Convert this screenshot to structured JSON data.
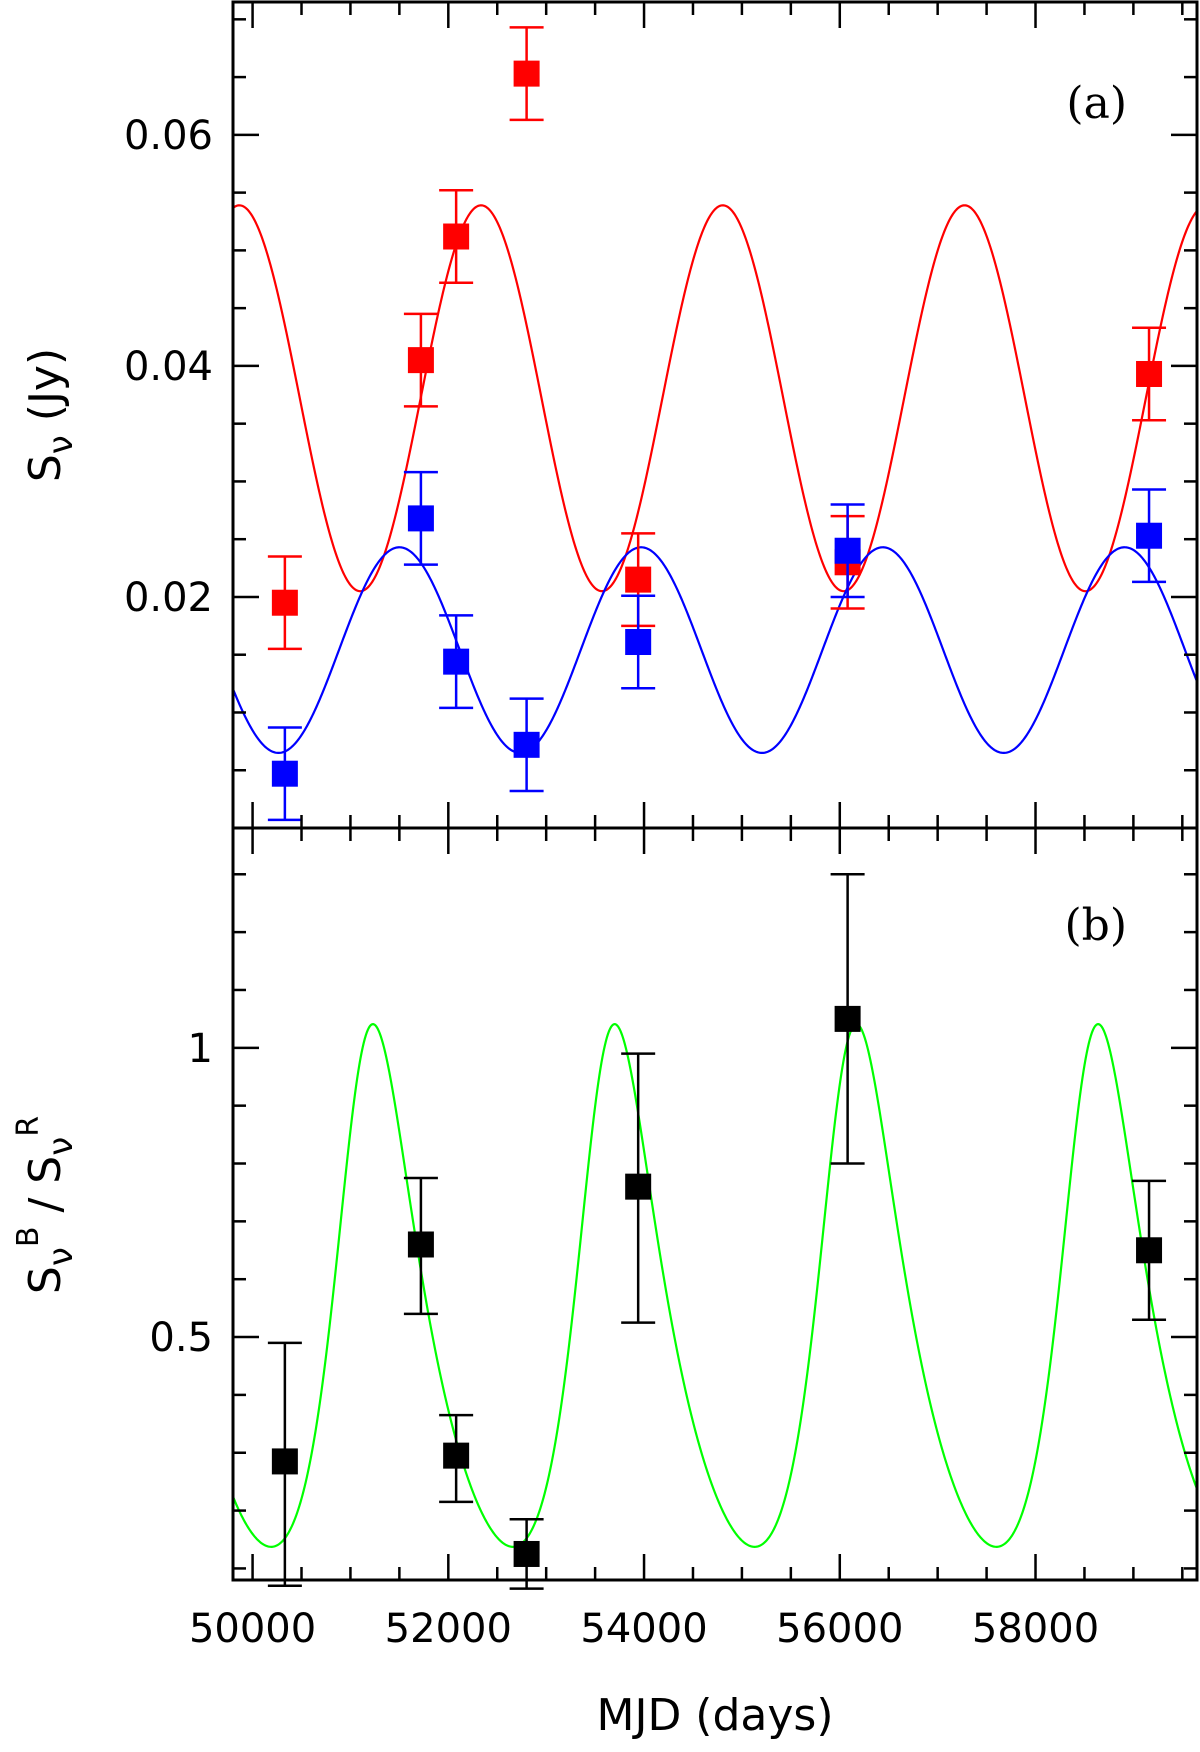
{
  "chart_data": [
    {
      "type": "scatter",
      "panel_label": "(a)",
      "xlabel": "MJD (days)",
      "ylabel": "S_ν (Jy)",
      "xlim": [
        49800,
        59650
      ],
      "ylim": [
        0.0,
        0.0715
      ],
      "xticks_major": [
        50000,
        52000,
        54000,
        56000,
        58000
      ],
      "yticks_major": [
        0.02,
        0.04,
        0.06
      ],
      "yticks_major_labels": [
        "0.02",
        "0.04",
        "0.06"
      ],
      "x_tick_labels_shown": false,
      "grid": false,
      "series": [
        {
          "color": "#ff0000",
          "points": [
            {
              "x": 50330,
              "y": 0.0195,
              "err": 0.004
            },
            {
              "x": 51720,
              "y": 0.0405,
              "err": 0.004
            },
            {
              "x": 52080,
              "y": 0.0512,
              "err": 0.004
            },
            {
              "x": 52800,
              "y": 0.0653,
              "err": 0.004
            },
            {
              "x": 53940,
              "y": 0.0215,
              "err": 0.004
            },
            {
              "x": 56080,
              "y": 0.023,
              "err": 0.004
            },
            {
              "x": 59160,
              "y": 0.0393,
              "err": 0.004
            }
          ],
          "model": {
            "kind": "sinusoid",
            "mean": 0.0372,
            "amplitude": 0.0167,
            "period_days": 2470,
            "peak_mjd": 52335
          }
        },
        {
          "color": "#0000ff",
          "points": [
            {
              "x": 50330,
              "y": 0.0047,
              "err": 0.004
            },
            {
              "x": 51720,
              "y": 0.0268,
              "err": 0.004
            },
            {
              "x": 52080,
              "y": 0.0144,
              "err": 0.004
            },
            {
              "x": 52800,
              "y": 0.0072,
              "err": 0.004
            },
            {
              "x": 53940,
              "y": 0.0161,
              "err": 0.004
            },
            {
              "x": 56080,
              "y": 0.024,
              "err": 0.004
            },
            {
              "x": 59160,
              "y": 0.0253,
              "err": 0.004
            }
          ],
          "model": {
            "kind": "sinusoid",
            "mean": 0.0154,
            "amplitude": 0.0089,
            "period_days": 2470,
            "peak_mjd": 51500
          }
        }
      ]
    },
    {
      "type": "scatter",
      "panel_label": "(b)",
      "xlabel": "MJD (days)",
      "ylabel": "S_ν^B / S_ν^R",
      "xlim": [
        49800,
        59650
      ],
      "ylim": [
        0.08,
        1.38
      ],
      "xticks_major": [
        50000,
        52000,
        54000,
        56000,
        58000
      ],
      "xticks_major_labels": [
        "50000",
        "52000",
        "54000",
        "56000",
        "58000"
      ],
      "yticks_major": [
        0.5,
        1.0
      ],
      "yticks_major_labels": [
        "0.5",
        "1"
      ],
      "grid": false,
      "series": [
        {
          "color": "#000000",
          "points": [
            {
              "x": 50330,
              "y": 0.285,
              "errlow": 0.215,
              "errhigh": 0.205
            },
            {
              "x": 51720,
              "y": 0.66,
              "errlow": 0.12,
              "errhigh": 0.115
            },
            {
              "x": 52080,
              "y": 0.295,
              "errlow": 0.08,
              "errhigh": 0.07
            },
            {
              "x": 52800,
              "y": 0.125,
              "errlow": 0.06,
              "errhigh": 0.06
            },
            {
              "x": 53940,
              "y": 0.76,
              "errlow": 0.235,
              "errhigh": 0.23
            },
            {
              "x": 56080,
              "y": 1.05,
              "errlow": 0.25,
              "errhigh": 0.25
            },
            {
              "x": 59160,
              "y": 0.65,
              "errlow": 0.12,
              "errhigh": 0.12
            }
          ],
          "model": {
            "kind": "ratio of panel (a) blue model to red model",
            "color": "#00ff00"
          }
        }
      ]
    }
  ]
}
